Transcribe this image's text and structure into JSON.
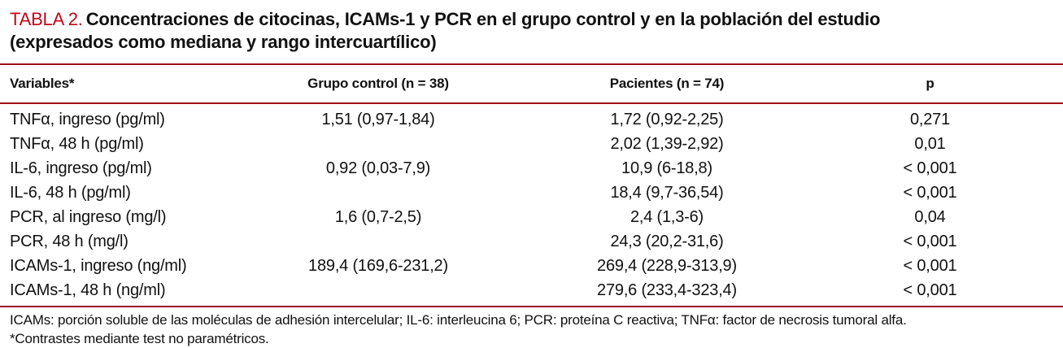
{
  "title": {
    "label": "TABLA 2.",
    "line1": "Concentraciones de citocinas, ICAMs-1 y PCR en el grupo control y en la población del estudio",
    "line2": "(expresados como mediana y rango intercuartílico)"
  },
  "table": {
    "columns": [
      "Variables*",
      "Grupo control (n = 38)",
      "Pacientes (n = 74)",
      "p"
    ],
    "rows": [
      {
        "variable": "TNFα, ingreso (pg/ml)",
        "control": "1,51 (0,97-1,84)",
        "pacientes": "1,72 (0,92-2,25)",
        "p": "0,271"
      },
      {
        "variable": "TNFα, 48 h (pg/ml)",
        "control": "",
        "pacientes": "2,02 (1,39-2,92)",
        "p": "0,01"
      },
      {
        "variable": "IL-6, ingreso (pg/ml)",
        "control": "0,92 (0,03-7,9)",
        "pacientes": "10,9 (6-18,8)",
        "p": "< 0,001"
      },
      {
        "variable": "IL-6, 48 h (pg/ml)",
        "control": "",
        "pacientes": "18,4 (9,7-36,54)",
        "p": "< 0,001"
      },
      {
        "variable": "PCR, al ingreso (mg/l)",
        "control": "1,6 (0,7-2,5)",
        "pacientes": "2,4 (1,3-6)",
        "p": "0,04"
      },
      {
        "variable": "PCR, 48 h (mg/l)",
        "control": "",
        "pacientes": "24,3 (20,2-31,6)",
        "p": "< 0,001"
      },
      {
        "variable": "ICAMs-1, ingreso (ng/ml)",
        "control": "189,4 (169,6-231,2)",
        "pacientes": "269,4 (228,9-313,9)",
        "p": "< 0,001"
      },
      {
        "variable": "ICAMs-1, 48 h (ng/ml)",
        "control": "",
        "pacientes": "279,6 (233,4-323,4)",
        "p": "< 0,001"
      }
    ]
  },
  "footnotes": {
    "line1": "ICAMs: porción soluble de las moléculas de adhesión intercelular; IL-6: interleucina 6; PCR: proteína C reactiva; TNFα: factor de necrosis tumoral alfa.",
    "line2": "*Contrastes mediante test no paramétricos."
  },
  "colors": {
    "accent_title": "#c0091b",
    "rule": "#9e0b16",
    "text": "#111111",
    "background": "#ffffff"
  }
}
